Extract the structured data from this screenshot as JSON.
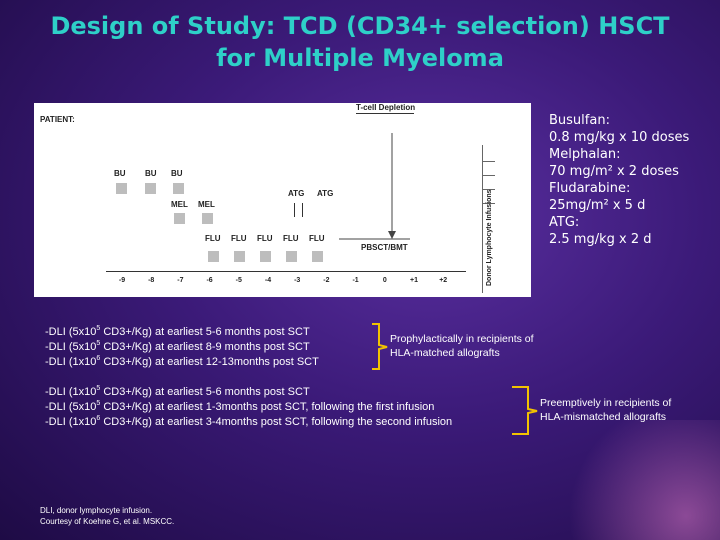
{
  "title_line1": "Design of Study: TCD (CD34+ selection) HSCT",
  "title_line2": "for Multiple Myeloma",
  "figure": {
    "patient_label": "PATIENT:",
    "tcell_label": "T-cell Depletion",
    "ptct_label": "PBSCT/BMT",
    "dli_vertical": "Donor Lymphocyte Infusions",
    "bu": "BU",
    "mel": "MEL",
    "atg": "ATG",
    "flu": "FLU",
    "ticks": [
      "-9",
      "-8",
      "-7",
      "-6",
      "-5",
      "-4",
      "-3",
      "-2",
      "-1",
      "0",
      "+1",
      "+2"
    ]
  },
  "drugs": [
    "Busulfan:",
    "0.8 mg/kg x 10 doses",
    "Melphalan:",
    "70 mg/m² x 2 doses",
    "Fludarabine:",
    "25mg/m² x 5 d",
    "ATG:",
    "2.5 mg/kg x 2 d"
  ],
  "dli_group1": [
    {
      "prefix": "-DLI (5x10",
      "exp": "5",
      "suffix": " CD3+/Kg) at earliest 5-6 months post SCT"
    },
    {
      "prefix": "-DLI (5x10",
      "exp": "5",
      "suffix": " CD3+/Kg) at earliest 8-9 months post SCT"
    },
    {
      "prefix": "-DLI (1x10",
      "exp": "6",
      "suffix": " CD3+/Kg) at earliest 12-13months post SCT"
    }
  ],
  "dli_group2": [
    {
      "prefix": "-DLI (1x10",
      "exp": "5",
      "suffix": " CD3+/Kg) at earliest 5-6 months post SCT"
    },
    {
      "prefix": "-DLI (5x10",
      "exp": "5",
      "suffix": " CD3+/Kg) at earliest 1-3months post SCT, following the first infusion"
    },
    {
      "prefix": "-DLI (1x10",
      "exp": "6",
      "suffix": " CD3+/Kg) at earliest 3-4months post SCT, following the second infusion"
    }
  ],
  "note1_line1": "Prophylactically in recipients of",
  "note1_line2": "HLA-matched allografts",
  "note2_line1": "Preemptively in recipients of",
  "note2_line2": "HLA-mismatched allografts",
  "credit_line1": "DLI, donor lymphocyte infusion.",
  "credit_line2": "Courtesy of Koehne G, et al. MSKCC.",
  "colors": {
    "title": "#2ed0c8",
    "bracket": "#f2c300",
    "background": "#3b1a78"
  }
}
